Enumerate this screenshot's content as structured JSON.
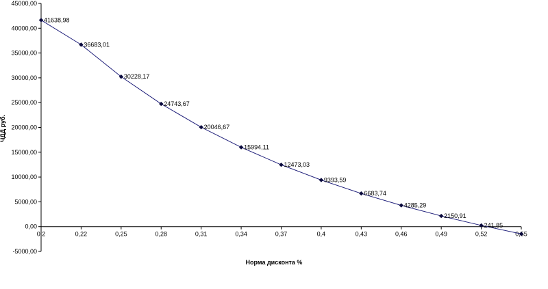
{
  "chart_data": {
    "type": "line",
    "title": "",
    "xlabel": "Норма дисконта %",
    "ylabel": "ЧДД руб.",
    "x_ticks": [
      "0,2",
      "0,22",
      "0,25",
      "0,28",
      "0,31",
      "0,34",
      "0,37",
      "0,4",
      "0,43",
      "0,46",
      "0,49",
      "0,52",
      "0,55"
    ],
    "y_ticks": [
      "45000,00",
      "40000,00",
      "35000,00",
      "30000,00",
      "25000,00",
      "20000,00",
      "15000,00",
      "10000,00",
      "5000,00",
      "0,00",
      "-5000,00"
    ],
    "ylim": [
      -5000,
      45000
    ],
    "grid": false,
    "legend": "none",
    "line_color": "#1f1f7a",
    "series": [
      {
        "x": [
          "0,2",
          "0,22",
          "0,25",
          "0,28",
          "0,31",
          "0,34",
          "0,37",
          "0,4",
          "0,43",
          "0,46",
          "0,49",
          "0,52",
          "0,55"
        ],
        "values": [
          41638.98,
          36683.01,
          30228.17,
          24743.67,
          20046.67,
          15994.11,
          12473.03,
          9393.59,
          6683.74,
          4285.29,
          2150.91,
          241.85,
          -1470
        ],
        "labels": [
          "41638,98",
          "36683,01",
          "30228,17",
          "24743,67",
          "20046,67",
          "15994,11",
          "12473,03",
          "9393,59",
          "6683,74",
          "4285,29",
          "2150,91",
          "241,85",
          ""
        ]
      }
    ]
  }
}
